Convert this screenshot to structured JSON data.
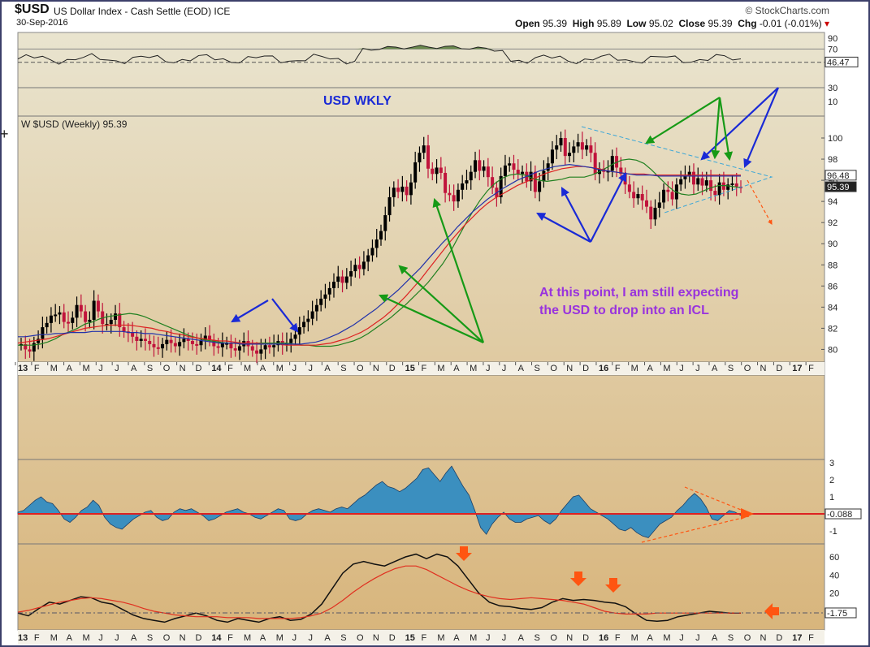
{
  "header": {
    "symbol": "$USD",
    "description": "US Dollar Index - Cash Settle (EOD) ICE",
    "date": "30-Sep-2016",
    "brand": "© StockCharts.com",
    "ohlc": {
      "open_label": "Open",
      "open": "95.39",
      "high_label": "High",
      "high": "95.89",
      "low_label": "Low",
      "low": "95.02",
      "close_label": "Close",
      "close": "95.39",
      "chg_label": "Chg",
      "chg": "-0.01 (-0.01%)"
    }
  },
  "annotations": {
    "title": "USD WKLY",
    "comment_line1": "At this point, I am still expecting",
    "comment_line2": "the USD to drop into an ICL"
  },
  "colors": {
    "panel_top": "#e9e4cf",
    "panel_bottom": "#d8b57c",
    "price_up": "#000000",
    "price_down": "#c0143c",
    "ma_green": "#208020",
    "ma_red": "#dd2222",
    "ma_blue": "#2233aa",
    "arrow_blue": "#1a2ad6",
    "arrow_green": "#169a16",
    "arrow_orange": "#ff5511",
    "title_blue": "#1a2ad6",
    "comment_purple": "#9933dd",
    "hist_fill": "#3b8fbf"
  },
  "chart_data": [
    {
      "type": "line",
      "name": "RSI panel",
      "y_ticks": [
        "90",
        "70",
        "30",
        "10"
      ],
      "last_value": "46.47",
      "ylim": [
        0,
        100
      ]
    },
    {
      "type": "candlestick",
      "legend": "W $USD (Weekly) 95.39",
      "ylim": [
        79,
        101.5
      ],
      "y_ticks": [
        "100",
        "98",
        "96",
        "94",
        "92",
        "90",
        "88",
        "86",
        "84",
        "82",
        "80"
      ],
      "value_labels": [
        "96.48",
        "95.39"
      ],
      "x_ticks": [
        "13",
        "F",
        "M",
        "A",
        "M",
        "J",
        "J",
        "A",
        "S",
        "O",
        "N",
        "D",
        "14",
        "F",
        "M",
        "A",
        "M",
        "J",
        "J",
        "A",
        "S",
        "O",
        "N",
        "D",
        "15",
        "F",
        "M",
        "A",
        "M",
        "J",
        "J",
        "A",
        "S",
        "O",
        "N",
        "D",
        "16",
        "F",
        "M",
        "A",
        "M",
        "J",
        "J",
        "A",
        "S",
        "O",
        "N",
        "D",
        "17",
        "F"
      ],
      "weekly_close": [
        80.5,
        80.0,
        79.8,
        80.6,
        81.0,
        82.1,
        82.5,
        83.2,
        83.3,
        83.5,
        82.6,
        82.5,
        83.0,
        84.2,
        83.6,
        82.6,
        82.8,
        84.6,
        83.6,
        82.4,
        82.4,
        82.8,
        83.4,
        82.1,
        81.7,
        81.6,
        81.2,
        80.8,
        81.0,
        80.8,
        80.5,
        80.2,
        80.1,
        80.5,
        80.9,
        80.6,
        80.3,
        80.7,
        81.0,
        80.8,
        80.5,
        80.4,
        80.9,
        81.3,
        80.9,
        80.3,
        80.2,
        80.6,
        80.6,
        80.1,
        79.9,
        80.3,
        80.8,
        80.3,
        79.9,
        79.6,
        80.0,
        80.4,
        80.2,
        80.4,
        80.8,
        80.4,
        80.6,
        81.0,
        81.4,
        82.1,
        82.6,
        82.9,
        83.6,
        84.2,
        84.8,
        85.2,
        85.8,
        86.4,
        86.9,
        86.3,
        86.9,
        87.4,
        88.0,
        87.6,
        88.3,
        88.9,
        89.6,
        90.4,
        91.2,
        92.7,
        94.4,
        95.3,
        94.9,
        95.4,
        94.6,
        95.8,
        97.7,
        98.6,
        99.3,
        97.1,
        96.6,
        97.2,
        96.7,
        94.8,
        94.6,
        94.0,
        95.1,
        95.7,
        96.0,
        96.8,
        97.9,
        96.9,
        97.3,
        96.3,
        95.3,
        94.4,
        96.4,
        97.4,
        97.6,
        97.0,
        96.6,
        96.8,
        95.9,
        96.8,
        94.9,
        95.9,
        96.9,
        97.6,
        98.9,
        99.3,
        100.0,
        98.3,
        98.6,
        99.2,
        99.6,
        98.9,
        99.3,
        98.6,
        96.6,
        97.1,
        96.8,
        96.9,
        98.3,
        97.2,
        96.6,
        95.6,
        94.9,
        94.3,
        94.7,
        94.1,
        93.5,
        92.3,
        93.4,
        93.9,
        95.1,
        94.9,
        94.2,
        95.6,
        96.1,
        96.4,
        96.8,
        95.6,
        96.2,
        95.5,
        96.0,
        95.0,
        94.6,
        95.8,
        95.1,
        95.6,
        95.7,
        95.4,
        95.39
      ],
      "series": [
        {
          "name": "SMA green",
          "values": [
            80.4,
            80.4,
            80.4,
            80.5,
            80.7,
            81.0,
            81.4,
            81.7,
            82.0,
            82.4,
            82.6,
            82.9,
            83.1,
            83.2,
            83.3,
            83.4,
            83.3,
            83.1,
            82.8,
            82.5,
            82.2,
            81.9,
            81.6,
            81.3,
            81.1,
            80.9,
            80.8,
            80.7,
            80.6,
            80.6,
            80.6,
            80.6,
            80.6,
            80.6,
            80.6,
            80.6,
            80.6,
            80.5,
            80.4,
            80.4,
            80.3,
            80.3,
            80.3,
            80.4,
            80.6,
            80.8,
            81.1,
            81.5,
            82.0,
            82.5,
            83.0,
            83.6,
            84.2,
            84.9,
            85.6,
            86.3,
            87.2,
            88.1,
            89.2,
            90.5,
            91.8,
            93.0,
            94.1,
            95.0,
            95.7,
            96.2,
            96.5,
            96.6,
            96.5,
            96.2,
            96.0,
            95.9,
            96.0,
            96.1,
            96.3,
            96.3,
            96.3,
            96.5,
            96.8,
            97.2,
            97.6,
            97.9,
            98.0,
            97.9,
            97.6,
            97.0,
            96.3,
            95.6,
            95.0,
            94.7,
            94.6,
            94.7,
            95.0,
            95.3,
            95.5,
            95.5,
            95.4,
            95.3
          ]
        },
        {
          "name": "SMA red",
          "values": [
            80.6,
            80.7,
            80.8,
            80.9,
            81.0,
            81.2,
            81.4,
            81.6,
            81.8,
            82.0,
            82.1,
            82.2,
            82.3,
            82.3,
            82.3,
            82.3,
            82.2,
            82.1,
            82.0,
            81.8,
            81.7,
            81.5,
            81.4,
            81.2,
            81.1,
            81.0,
            80.9,
            80.8,
            80.8,
            80.7,
            80.6,
            80.6,
            80.6,
            80.5,
            80.5,
            80.5,
            80.4,
            80.4,
            80.4,
            80.4,
            80.4,
            80.5,
            80.6,
            80.8,
            81.0,
            81.3,
            81.6,
            82.0,
            82.5,
            83.0,
            83.6,
            84.3,
            85.0,
            85.8,
            86.6,
            87.5,
            88.4,
            89.3,
            90.2,
            91.0,
            91.8,
            92.5,
            93.2,
            93.8,
            94.3,
            94.7,
            95.1,
            95.5,
            95.8,
            96.1,
            96.4,
            96.7,
            96.9,
            97.1,
            97.2,
            97.3,
            97.3,
            97.2,
            97.1,
            96.9,
            96.8,
            96.7,
            96.6,
            96.6,
            96.6,
            96.5,
            96.5,
            96.5,
            96.5,
            96.5,
            96.5,
            96.5,
            96.5,
            96.5,
            96.5,
            96.5,
            96.5,
            96.5
          ]
        },
        {
          "name": "SMA blue",
          "values": [
            81.2,
            81.2,
            81.3,
            81.4,
            81.4,
            81.5,
            81.5,
            81.6,
            81.6,
            81.6,
            81.7,
            81.7,
            81.7,
            81.7,
            81.7,
            81.6,
            81.6,
            81.5,
            81.5,
            81.4,
            81.3,
            81.2,
            81.1,
            81.0,
            80.9,
            80.8,
            80.7,
            80.6,
            80.6,
            80.6,
            80.5,
            80.5,
            80.5,
            80.5,
            80.5,
            80.5,
            80.5,
            80.5,
            80.5,
            80.6,
            80.7,
            80.9,
            81.2,
            81.5,
            81.9,
            82.3,
            82.8,
            83.3,
            83.8,
            84.4,
            85.0,
            85.6,
            86.3,
            87.0,
            87.7,
            88.5,
            89.3,
            90.1,
            90.8,
            91.6,
            92.3,
            93.0,
            93.6,
            94.2,
            94.7,
            95.2,
            95.6,
            96.0,
            96.3,
            96.6,
            96.9,
            97.1,
            97.3,
            97.4,
            97.5,
            97.4,
            97.3,
            97.2,
            97.0,
            96.9,
            96.8,
            96.7,
            96.6,
            96.5,
            96.5,
            96.5,
            96.4,
            96.4,
            96.4,
            96.4,
            96.4,
            96.4,
            96.4,
            96.4,
            96.4,
            96.4,
            96.4,
            96.4
          ]
        }
      ]
    },
    {
      "type": "area",
      "name": "histogram oscillator",
      "y_ticks": [
        "3",
        "2",
        "1",
        "-1"
      ],
      "last_value": "-0.088",
      "ylim": [
        -1.6,
        3.3
      ],
      "values": [
        0.1,
        0.2,
        0.5,
        0.8,
        1.0,
        0.7,
        0.6,
        0.2,
        -0.3,
        -0.5,
        -0.2,
        0.2,
        0.4,
        0.8,
        0.5,
        -0.2,
        -0.6,
        -0.8,
        -0.9,
        -0.6,
        -0.3,
        -0.1,
        0.1,
        0.2,
        -0.2,
        -0.4,
        -0.3,
        0.1,
        0.3,
        0.2,
        0.3,
        0.1,
        -0.1,
        -0.4,
        -0.3,
        -0.1,
        0.1,
        0.2,
        0.3,
        0.1,
        0.0,
        -0.2,
        -0.3,
        -0.1,
        0.1,
        0.3,
        0.2,
        -0.3,
        -0.4,
        -0.3,
        0.0,
        0.2,
        0.3,
        0.2,
        0.1,
        0.3,
        0.4,
        0.3,
        0.6,
        0.9,
        1.1,
        1.4,
        1.7,
        1.9,
        1.6,
        1.5,
        1.3,
        1.5,
        1.8,
        2.1,
        2.6,
        2.7,
        2.3,
        1.9,
        2.4,
        2.8,
        2.2,
        1.6,
        1.1,
        0.2,
        -0.8,
        -1.2,
        -0.6,
        -0.2,
        0.1,
        -0.3,
        -0.5,
        -0.5,
        -0.3,
        -0.2,
        -0.1,
        -0.4,
        -0.6,
        -0.3,
        0.2,
        0.6,
        1.0,
        1.1,
        0.7,
        0.3,
        0.1,
        -0.1,
        -0.3,
        -0.6,
        -0.9,
        -1.0,
        -0.8,
        -1.1,
        -1.3,
        -1.4,
        -1.0,
        -0.6,
        -0.4,
        -0.2,
        0.2,
        0.5,
        0.9,
        1.2,
        0.9,
        0.4,
        -0.3,
        -0.4,
        -0.1,
        0.2,
        0.1,
        -0.088
      ]
    },
    {
      "type": "line",
      "name": "bottom oscillator",
      "last_value": "-1.75",
      "y_ticks": [
        "60",
        "40",
        "20"
      ],
      "ylim": [
        -15,
        70
      ],
      "x_ticks": [
        "13",
        "F",
        "M",
        "A",
        "M",
        "J",
        "J",
        "A",
        "S",
        "O",
        "N",
        "D",
        "14",
        "F",
        "M",
        "A",
        "M",
        "J",
        "J",
        "A",
        "S",
        "O",
        "N",
        "D",
        "15",
        "F",
        "M",
        "A",
        "M",
        "J",
        "J",
        "A",
        "S",
        "O",
        "N",
        "D",
        "16",
        "F",
        "M",
        "A",
        "M",
        "J",
        "J",
        "A",
        "S",
        "O",
        "N",
        "D",
        "17",
        "F"
      ],
      "series": [
        {
          "name": "oscillator black",
          "values": [
            -2,
            -5,
            3,
            10,
            8,
            12,
            16,
            15,
            10,
            8,
            2,
            -4,
            -8,
            -10,
            -12,
            -8,
            -5,
            -2,
            -5,
            -10,
            -12,
            -8,
            -10,
            -12,
            -8,
            -6,
            -10,
            -9,
            -3,
            8,
            25,
            42,
            52,
            55,
            52,
            50,
            55,
            60,
            63,
            58,
            63,
            60,
            50,
            35,
            20,
            10,
            6,
            5,
            3,
            2,
            4,
            10,
            14,
            12,
            13,
            12,
            10,
            9,
            5,
            -3,
            -10,
            -11,
            -10,
            -6,
            -4,
            -2,
            0,
            -1,
            -2,
            -2
          ]
        },
        {
          "name": "signal red",
          "values": [
            -1,
            1,
            4,
            7,
            10,
            12,
            14,
            15,
            14,
            12,
            10,
            7,
            3,
            0,
            -2,
            -4,
            -5,
            -6,
            -6,
            -6,
            -7,
            -7,
            -7,
            -8,
            -8,
            -8,
            -8,
            -7,
            -5,
            -2,
            4,
            12,
            21,
            29,
            36,
            42,
            47,
            50,
            50,
            46,
            40,
            34,
            28,
            23,
            19,
            16,
            14,
            13,
            14,
            15,
            14,
            13,
            12,
            10,
            8,
            4,
            0,
            -2,
            -3,
            -3,
            -3,
            -2,
            -2,
            -2,
            -2,
            -2,
            -2,
            -2,
            -2,
            -2
          ]
        }
      ]
    }
  ]
}
